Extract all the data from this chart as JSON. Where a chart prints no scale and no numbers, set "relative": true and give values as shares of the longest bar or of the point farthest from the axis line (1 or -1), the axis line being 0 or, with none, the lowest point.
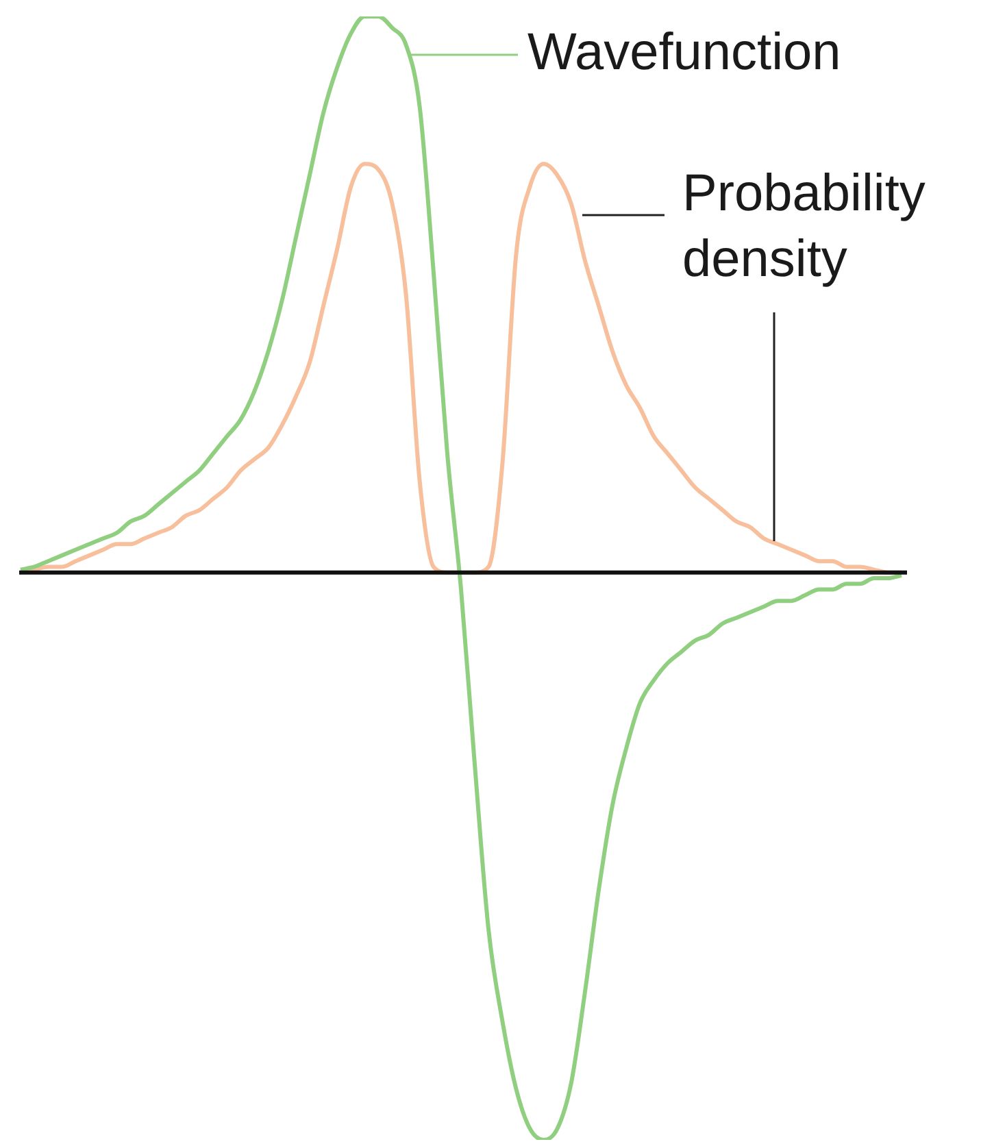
{
  "chart_data": {
    "type": "line",
    "relative": true,
    "categories": [
      null,
      null,
      null,
      null,
      null,
      null,
      null,
      null,
      null,
      null,
      null,
      null,
      null,
      null,
      null,
      null,
      null,
      null,
      null,
      null,
      null,
      null,
      null,
      null,
      null,
      null,
      null,
      null,
      null,
      null,
      null,
      null,
      null,
      null,
      null,
      null,
      null,
      null,
      null,
      null,
      null,
      null,
      null,
      null,
      null,
      null,
      null,
      null,
      null,
      null,
      null,
      null,
      null,
      null,
      null,
      null,
      null,
      null,
      null,
      null,
      null,
      null,
      null,
      null,
      null
    ],
    "series": [
      {
        "name": "Wavefunction",
        "color": "#8fcf7f",
        "values": [
          0.005,
          0.01,
          0.02,
          0.03,
          0.04,
          0.05,
          0.06,
          0.07,
          0.09,
          0.1,
          0.12,
          0.14,
          0.16,
          0.18,
          0.21,
          0.24,
          0.27,
          0.32,
          0.39,
          0.48,
          0.59,
          0.7,
          0.81,
          0.89,
          0.95,
          0.98,
          0.98,
          0.96,
          0.93,
          0.82,
          0.53,
          0.21,
          -0.03,
          -0.34,
          -0.63,
          -0.79,
          -0.91,
          -0.98,
          -1,
          -0.98,
          -0.9,
          -0.74,
          -0.56,
          -0.41,
          -0.31,
          -0.23,
          -0.19,
          -0.16,
          -0.14,
          -0.12,
          -0.11,
          -0.09,
          -0.08,
          -0.07,
          -0.06,
          -0.05,
          -0.05,
          -0.04,
          -0.03,
          -0.03,
          -0.02,
          -0.02,
          -0.01,
          -0.01,
          -0.005
        ]
      },
      {
        "name": "Probability\ndensity",
        "color": "#f7bf9b",
        "values": [
          0,
          0.005,
          0.01,
          0.01,
          0.02,
          0.03,
          0.04,
          0.05,
          0.05,
          0.06,
          0.07,
          0.08,
          0.1,
          0.11,
          0.13,
          0.15,
          0.18,
          0.2,
          0.22,
          0.26,
          0.31,
          0.37,
          0.47,
          0.57,
          0.68,
          0.72,
          0.71,
          0.65,
          0.49,
          0.16,
          0.01,
          0,
          0,
          0,
          0.01,
          0.19,
          0.56,
          0.68,
          0.72,
          0.7,
          0.65,
          0.55,
          0.47,
          0.39,
          0.33,
          0.29,
          0.24,
          0.21,
          0.18,
          0.15,
          0.13,
          0.11,
          0.09,
          0.08,
          0.06,
          0.05,
          0.04,
          0.03,
          0.02,
          0.02,
          0.01,
          0.01,
          0.005,
          0,
          0
        ]
      }
    ]
  }
}
